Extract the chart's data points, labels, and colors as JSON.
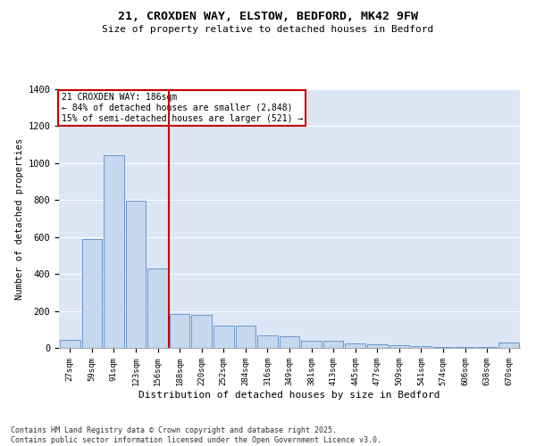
{
  "title1": "21, CROXDEN WAY, ELSTOW, BEDFORD, MK42 9FW",
  "title2": "Size of property relative to detached houses in Bedford",
  "xlabel": "Distribution of detached houses by size in Bedford",
  "ylabel": "Number of detached properties",
  "categories": [
    "27sqm",
    "59sqm",
    "91sqm",
    "123sqm",
    "156sqm",
    "188sqm",
    "220sqm",
    "252sqm",
    "284sqm",
    "316sqm",
    "349sqm",
    "381sqm",
    "413sqm",
    "445sqm",
    "477sqm",
    "509sqm",
    "541sqm",
    "574sqm",
    "606sqm",
    "638sqm",
    "670sqm"
  ],
  "values": [
    45,
    590,
    1045,
    795,
    430,
    185,
    180,
    120,
    120,
    70,
    65,
    40,
    40,
    25,
    18,
    14,
    10,
    7,
    4,
    3,
    30
  ],
  "bar_color": "#c5d8ee",
  "bar_edge_color": "#5b8cc8",
  "bg_color": "#dce6f5",
  "grid_color": "#ffffff",
  "vline_color": "#cc0000",
  "annotation_text": "21 CROXDEN WAY: 186sqm\n← 84% of detached houses are smaller (2,848)\n15% of semi-detached houses are larger (521) →",
  "annotation_box_color": "#ffffff",
  "annotation_box_edge": "#cc0000",
  "footnote": "Contains HM Land Registry data © Crown copyright and database right 2025.\nContains public sector information licensed under the Open Government Licence v3.0.",
  "ylim": [
    0,
    1400
  ],
  "yticks": [
    0,
    200,
    400,
    600,
    800,
    1000,
    1200,
    1400
  ]
}
